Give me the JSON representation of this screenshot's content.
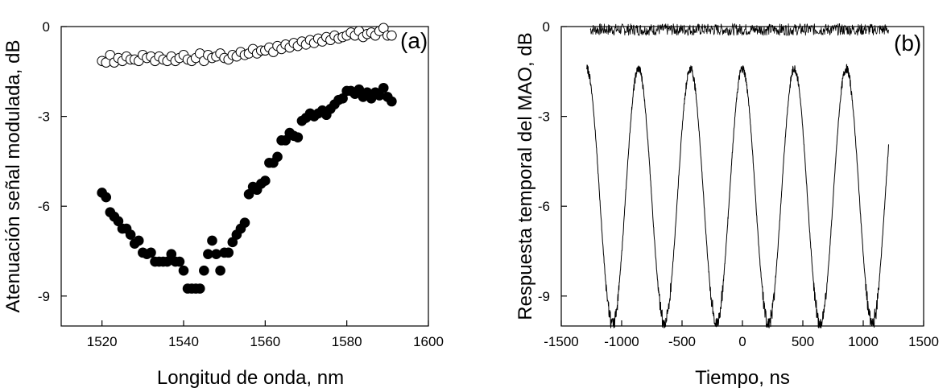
{
  "chart_data": [
    {
      "type": "scatter",
      "panel_label": "(a)",
      "xlabel": "Longitud de onda, nm",
      "ylabel": "Atenuación señal modulada, dB",
      "xlim": [
        1510,
        1600
      ],
      "ylim": [
        -10,
        0
      ],
      "xticks": [
        1520,
        1540,
        1560,
        1580,
        1600
      ],
      "yticks": [
        0,
        -3,
        -6,
        -9
      ],
      "xtick_labels": [
        "1520",
        "1540",
        "1560",
        "1580",
        "1600"
      ],
      "ytick_labels": [
        "0",
        "-3",
        "-6",
        "-9"
      ],
      "grid": false,
      "series": [
        {
          "marker": "open-circle",
          "x": [
            1520,
            1521,
            1522,
            1523,
            1524,
            1525,
            1526,
            1527,
            1528,
            1529,
            1530,
            1531,
            1532,
            1533,
            1534,
            1535,
            1536,
            1537,
            1538,
            1539,
            1540,
            1541,
            1542,
            1543,
            1544,
            1545,
            1546,
            1547,
            1548,
            1549,
            1550,
            1551,
            1552,
            1553,
            1554,
            1555,
            1556,
            1557,
            1558,
            1559,
            1560,
            1561,
            1562,
            1563,
            1564,
            1565,
            1566,
            1567,
            1568,
            1569,
            1570,
            1571,
            1572,
            1573,
            1574,
            1575,
            1576,
            1577,
            1578,
            1579,
            1580,
            1581,
            1582,
            1583,
            1584,
            1585,
            1586,
            1587,
            1588,
            1589,
            1590,
            1591
          ],
          "values": [
            -1.15,
            -1.2,
            -0.95,
            -1.2,
            -1.05,
            -1.15,
            -1.0,
            -1.1,
            -1.1,
            -1.15,
            -0.95,
            -1.05,
            -1.0,
            -1.15,
            -1.0,
            -1.1,
            -1.15,
            -1.0,
            -1.15,
            -1.05,
            -0.95,
            -1.1,
            -1.15,
            -1.05,
            -0.9,
            -1.15,
            -0.95,
            -1.05,
            -1.0,
            -0.9,
            -1.05,
            -1.1,
            -0.95,
            -1.0,
            -0.85,
            -0.95,
            -0.9,
            -0.75,
            -0.9,
            -0.8,
            -0.8,
            -0.7,
            -0.85,
            -0.65,
            -0.75,
            -0.6,
            -0.7,
            -0.55,
            -0.65,
            -0.5,
            -0.6,
            -0.45,
            -0.55,
            -0.4,
            -0.5,
            -0.35,
            -0.45,
            -0.3,
            -0.4,
            -0.35,
            -0.3,
            -0.2,
            -0.3,
            -0.15,
            -0.35,
            -0.25,
            -0.2,
            -0.3,
            -0.15,
            -0.05,
            -0.3,
            -0.3
          ]
        },
        {
          "marker": "filled-circle",
          "x": [
            1520,
            1521,
            1522,
            1523,
            1524,
            1525,
            1526,
            1527,
            1528,
            1529,
            1530,
            1531,
            1532,
            1533,
            1534,
            1535,
            1536,
            1537,
            1538,
            1539,
            1540,
            1541,
            1542,
            1543,
            1544,
            1545,
            1546,
            1547,
            1548,
            1549,
            1550,
            1551,
            1552,
            1553,
            1554,
            1555,
            1556,
            1557,
            1558,
            1559,
            1560,
            1561,
            1562,
            1563,
            1564,
            1565,
            1566,
            1567,
            1568,
            1569,
            1570,
            1571,
            1572,
            1573,
            1574,
            1575,
            1576,
            1577,
            1578,
            1579,
            1580,
            1581,
            1582,
            1583,
            1584,
            1585,
            1586,
            1587,
            1588,
            1589,
            1590,
            1591
          ],
          "values": [
            -5.55,
            -5.7,
            -6.2,
            -6.35,
            -6.5,
            -6.75,
            -6.75,
            -6.95,
            -7.25,
            -7.15,
            -7.55,
            -7.6,
            -7.55,
            -7.85,
            -7.85,
            -7.85,
            -7.85,
            -7.6,
            -7.85,
            -7.85,
            -8.15,
            -8.75,
            -8.75,
            -8.75,
            -8.75,
            -8.15,
            -7.6,
            -7.15,
            -7.6,
            -8.15,
            -7.55,
            -7.55,
            -7.2,
            -6.95,
            -6.75,
            -6.55,
            -5.6,
            -5.35,
            -5.45,
            -5.25,
            -5.15,
            -4.55,
            -4.55,
            -4.35,
            -3.8,
            -3.8,
            -3.55,
            -3.65,
            -3.7,
            -3.15,
            -3.05,
            -2.9,
            -3.0,
            -2.9,
            -2.8,
            -2.95,
            -2.75,
            -2.6,
            -2.45,
            -2.4,
            -2.15,
            -2.15,
            -2.25,
            -2.1,
            -2.35,
            -2.2,
            -2.4,
            -2.2,
            -2.3,
            -2.05,
            -2.35,
            -2.5
          ]
        }
      ]
    },
    {
      "type": "line",
      "panel_label": "(b)",
      "xlabel": "Tiempo, ns",
      "ylabel": "Respuesta temporal del MAO, dB",
      "xlim": [
        -1500,
        1500
      ],
      "ylim": [
        -10,
        0
      ],
      "xticks": [
        -1500,
        -1000,
        -500,
        0,
        500,
        1000,
        1500
      ],
      "yticks": [
        0,
        -3,
        -6,
        -9
      ],
      "xtick_labels": [
        "-1500",
        "-1000",
        "-500",
        "0",
        "500",
        "1000",
        "1500"
      ],
      "ytick_labels": [
        "0",
        "-3",
        "-6",
        "-9"
      ],
      "grid": false,
      "series": [
        {
          "style": "noisy-flat",
          "x_range": [
            -1260,
            1210
          ],
          "mean": -0.1,
          "noise_amplitude": 0.2
        },
        {
          "style": "periodic",
          "x_range": [
            -1290,
            1210
          ],
          "period_ns": 430,
          "peak_x": [
            -860,
            -430,
            0,
            430,
            860
          ],
          "max": -1.4,
          "min": -9.9,
          "start_value": -1.6,
          "end_value": -4.6
        }
      ]
    }
  ]
}
